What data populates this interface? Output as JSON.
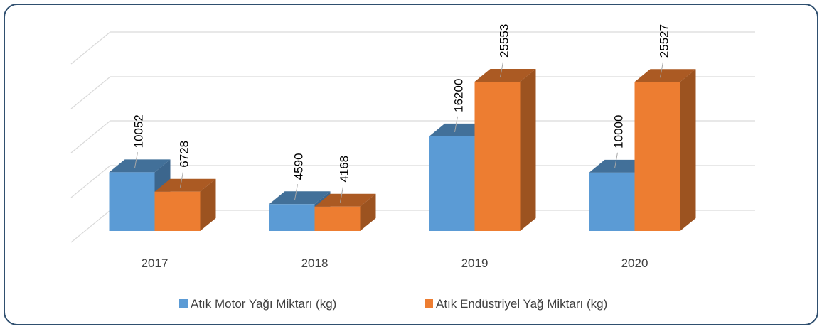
{
  "chart_data": {
    "type": "bar",
    "categories": [
      "2017",
      "2018",
      "2019",
      "2020"
    ],
    "series": [
      {
        "name": "Atık Motor Yağı Miktarı (kg)",
        "color": "#5b9bd5",
        "values": [
          10052,
          4590,
          16200,
          10000
        ]
      },
      {
        "name": "Atık Endüstriyel Yağ Miktarı (kg)",
        "color": "#ed7d31",
        "values": [
          6728,
          4168,
          25553,
          25527
        ]
      }
    ]
  }
}
